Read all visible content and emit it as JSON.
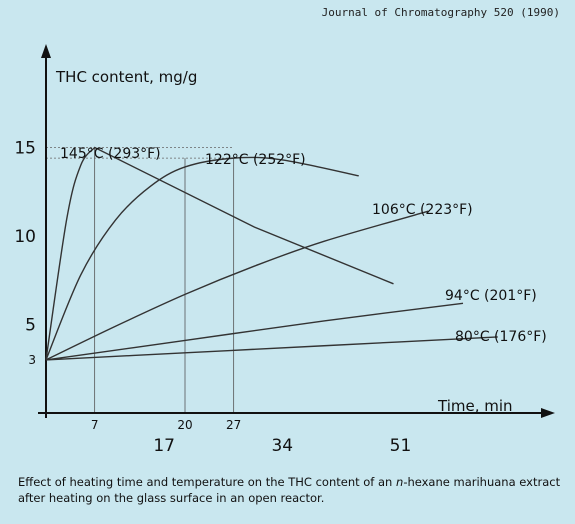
{
  "source": "Journal of Chromatography 520 (1990)",
  "caption": {
    "before": "Effect of heating time and temperature on the THC content of an ",
    "italic": "n",
    "after": "-hexane marihuana extract after heating on the glass surface in an open reactor."
  },
  "chart_data": {
    "type": "line",
    "title": "",
    "xlabel": "Time, min",
    "ylabel": "THC content, mg/g",
    "xlim": [
      0,
      60
    ],
    "ylim": [
      0,
      17
    ],
    "x_ticks_major": [
      17,
      34,
      51
    ],
    "x_ticks_minor": [
      7,
      20,
      27
    ],
    "y_ticks": [
      3,
      5,
      10,
      15
    ],
    "grid": false,
    "series": [
      {
        "name": "145°C (293°F)",
        "x": [
          0,
          3,
          5,
          7,
          30,
          50
        ],
        "y": [
          3,
          11,
          14,
          15,
          10.5,
          7.3
        ]
      },
      {
        "name": "122°C (252°F)",
        "x": [
          0,
          5,
          10,
          15,
          20,
          27,
          34,
          45
        ],
        "y": [
          3,
          7.8,
          10.9,
          12.8,
          13.9,
          14.4,
          14.3,
          13.4
        ]
      },
      {
        "name": "106°C (223°F)",
        "x": [
          0,
          10,
          20,
          30,
          40,
          55
        ],
        "y": [
          3,
          4.9,
          6.7,
          8.3,
          9.7,
          11.4
        ]
      },
      {
        "name": "94°C (201°F)",
        "x": [
          0,
          20,
          40,
          60
        ],
        "y": [
          3,
          4.1,
          5.2,
          6.2
        ]
      },
      {
        "name": "80°C (176°F)",
        "x": [
          0,
          20,
          40,
          65
        ],
        "y": [
          3,
          3.4,
          3.8,
          4.3
        ]
      }
    ],
    "reference_lines_x": [
      7,
      20,
      27
    ],
    "reference_lines_y": [
      14.4,
      15
    ]
  }
}
